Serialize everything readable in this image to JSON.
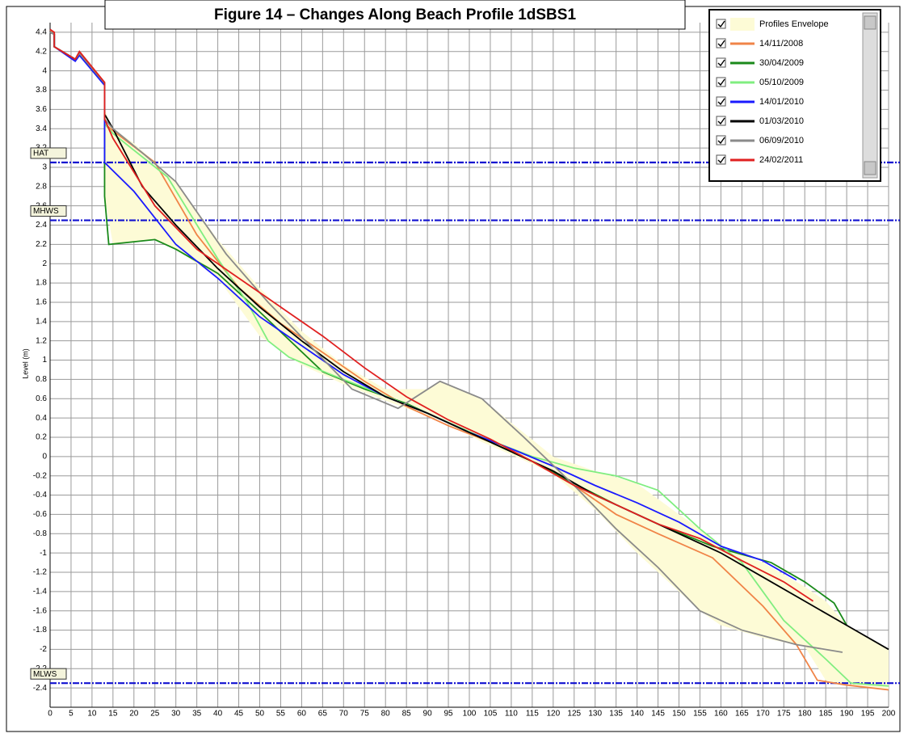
{
  "chart_data": {
    "type": "line",
    "title": "Figure 14 – Changes Along Beach Profile 1dSBS1",
    "y_label": "Level (m)",
    "xlim": [
      0,
      200
    ],
    "ylim": [
      -2.6,
      4.5
    ],
    "xticks": [
      0,
      5,
      10,
      15,
      20,
      25,
      30,
      35,
      40,
      45,
      50,
      55,
      60,
      65,
      70,
      75,
      80,
      85,
      90,
      95,
      100,
      105,
      110,
      115,
      120,
      125,
      130,
      135,
      140,
      145,
      150,
      155,
      160,
      165,
      170,
      175,
      180,
      185,
      190,
      195,
      200
    ],
    "yticks": [
      4.4,
      4.2,
      4,
      3.8,
      3.6,
      3.4,
      3.2,
      3,
      2.8,
      2.6,
      2.4,
      2.2,
      2,
      1.8,
      1.6,
      1.4,
      1.2,
      1,
      0.8,
      0.6,
      0.4,
      0.2,
      0,
      -0.2,
      -0.4,
      -0.6,
      -0.8,
      -1,
      -1.2,
      -1.4,
      -1.6,
      -1.8,
      -2,
      -2.2,
      -2.4
    ],
    "grid": true,
    "legend": "upper right",
    "envelope": {
      "name": "Profiles Envelope",
      "color": "#fdfbd6",
      "x": [
        13,
        15,
        20,
        25,
        30,
        40,
        50,
        60,
        70,
        80,
        90,
        93,
        100,
        103,
        110,
        120,
        130,
        140,
        150,
        155,
        160,
        170,
        180,
        185,
        190,
        200
      ],
      "upper": [
        3.6,
        3.4,
        3.25,
        3.05,
        2.85,
        2.25,
        1.75,
        1.3,
        0.95,
        0.7,
        0.7,
        0.78,
        0.65,
        0.6,
        0.35,
        0.0,
        -0.15,
        -0.28,
        -0.6,
        -0.75,
        -0.95,
        -1.1,
        -1.35,
        -1.5,
        -1.75,
        -2.0
      ],
      "lower": [
        2.7,
        2.2,
        2.22,
        2.25,
        2.15,
        1.85,
        1.25,
        0.95,
        0.75,
        0.58,
        0.42,
        0.38,
        0.22,
        0.15,
        0.02,
        -0.18,
        -0.55,
        -1.0,
        -1.4,
        -1.6,
        -1.75,
        -1.88,
        -1.97,
        -2.32,
        -2.37,
        -2.42
      ]
    },
    "reference_lines": [
      {
        "label": "HAT",
        "value": 3.05,
        "color": "#1010d0"
      },
      {
        "label": "MHWS",
        "value": 2.45,
        "color": "#1010d0"
      },
      {
        "label": "MLWS",
        "value": -2.35,
        "color": "#1010d0"
      }
    ],
    "series": [
      {
        "name": "14/11/2008",
        "color": "#f08448",
        "x": [
          0,
          1,
          1,
          6,
          7,
          13,
          13,
          15,
          25,
          35,
          45,
          55,
          65,
          75,
          85,
          95,
          105,
          115,
          125,
          135,
          145,
          158,
          170,
          178,
          183,
          190,
          200
        ],
        "values": [
          4.42,
          4.4,
          4.25,
          4.12,
          4.2,
          3.88,
          3.45,
          3.38,
          3.05,
          2.3,
          1.75,
          1.38,
          1.08,
          0.78,
          0.52,
          0.32,
          0.15,
          -0.05,
          -0.3,
          -0.6,
          -0.8,
          -1.05,
          -1.55,
          -1.95,
          -2.32,
          -2.37,
          -2.42
        ]
      },
      {
        "name": "30/04/2009",
        "color": "#1a8a1a",
        "x": [
          0,
          1,
          1,
          6,
          7,
          13,
          13,
          14,
          25,
          30,
          40,
          50,
          65,
          75,
          85,
          95,
          105,
          115,
          125,
          135,
          145,
          158,
          172,
          180,
          187,
          190
        ],
        "values": [
          4.4,
          4.38,
          4.25,
          4.12,
          4.18,
          3.87,
          2.7,
          2.2,
          2.25,
          2.15,
          1.9,
          1.5,
          0.88,
          0.7,
          0.55,
          0.35,
          0.15,
          -0.05,
          -0.28,
          -0.5,
          -0.7,
          -0.93,
          -1.1,
          -1.3,
          -1.52,
          -1.75
        ]
      },
      {
        "name": "05/10/2009",
        "color": "#80ee80",
        "x": [
          0,
          1,
          1,
          6,
          7,
          13,
          13,
          15,
          28,
          40,
          47,
          52,
          57,
          67,
          77,
          90,
          103,
          115,
          125,
          135,
          145,
          155,
          165,
          175,
          185,
          191,
          200
        ],
        "values": [
          4.4,
          4.38,
          4.25,
          4.12,
          4.18,
          3.87,
          3.45,
          3.35,
          2.9,
          2.05,
          1.6,
          1.2,
          1.03,
          0.85,
          0.68,
          0.45,
          0.2,
          0.0,
          -0.12,
          -0.2,
          -0.35,
          -0.75,
          -1.1,
          -1.7,
          -2.1,
          -2.35,
          -2.38
        ]
      },
      {
        "name": "14/01/2010",
        "color": "#1a1aff",
        "x": [
          0,
          1,
          1,
          6,
          7,
          13,
          13,
          20,
          30,
          40,
          50,
          60,
          70,
          80,
          90,
          100,
          110,
          120,
          130,
          140,
          150,
          160,
          170,
          178
        ],
        "values": [
          4.4,
          4.38,
          4.25,
          4.1,
          4.16,
          3.85,
          3.05,
          2.75,
          2.2,
          1.85,
          1.45,
          1.15,
          0.85,
          0.62,
          0.45,
          0.25,
          0.08,
          -0.1,
          -0.3,
          -0.48,
          -0.68,
          -0.93,
          -1.08,
          -1.28
        ]
      },
      {
        "name": "01/03/2010",
        "color": "#000000",
        "x": [
          0,
          1,
          1,
          6,
          7,
          13,
          13,
          15,
          22,
          30,
          40,
          50,
          60,
          70,
          80,
          90,
          100,
          110,
          120,
          130,
          140,
          150,
          160,
          170,
          180,
          190,
          200
        ],
        "values": [
          4.4,
          4.38,
          4.25,
          4.12,
          4.18,
          3.87,
          3.55,
          3.4,
          2.8,
          2.4,
          1.95,
          1.55,
          1.2,
          0.88,
          0.62,
          0.45,
          0.25,
          0.05,
          -0.15,
          -0.4,
          -0.6,
          -0.8,
          -1.0,
          -1.25,
          -1.5,
          -1.75,
          -2.0
        ]
      },
      {
        "name": "06/09/2010",
        "color": "#8a8a8a",
        "x": [
          0,
          1,
          1,
          6,
          7,
          13,
          13,
          15,
          22,
          30,
          42,
          52,
          62,
          72,
          83,
          93,
          103,
          113,
          125,
          135,
          145,
          155,
          165,
          178,
          189
        ],
        "values": [
          4.4,
          4.38,
          4.25,
          4.12,
          4.18,
          3.87,
          3.5,
          3.4,
          3.15,
          2.85,
          2.1,
          1.6,
          1.15,
          0.7,
          0.5,
          0.78,
          0.6,
          0.2,
          -0.3,
          -0.75,
          -1.15,
          -1.6,
          -1.8,
          -1.95,
          -2.03
        ]
      },
      {
        "name": "24/02/2011",
        "color": "#e02020",
        "x": [
          0,
          1,
          1,
          6,
          7,
          13,
          13,
          15,
          25,
          35,
          45,
          55,
          65,
          75,
          85,
          95,
          105,
          115,
          125,
          135,
          145,
          155,
          165,
          175,
          182
        ],
        "values": [
          4.43,
          4.4,
          4.25,
          4.12,
          4.2,
          3.88,
          3.5,
          3.3,
          2.6,
          2.15,
          1.85,
          1.55,
          1.25,
          0.92,
          0.62,
          0.38,
          0.18,
          -0.05,
          -0.3,
          -0.5,
          -0.7,
          -0.85,
          -1.08,
          -1.3,
          -1.5
        ]
      }
    ]
  }
}
